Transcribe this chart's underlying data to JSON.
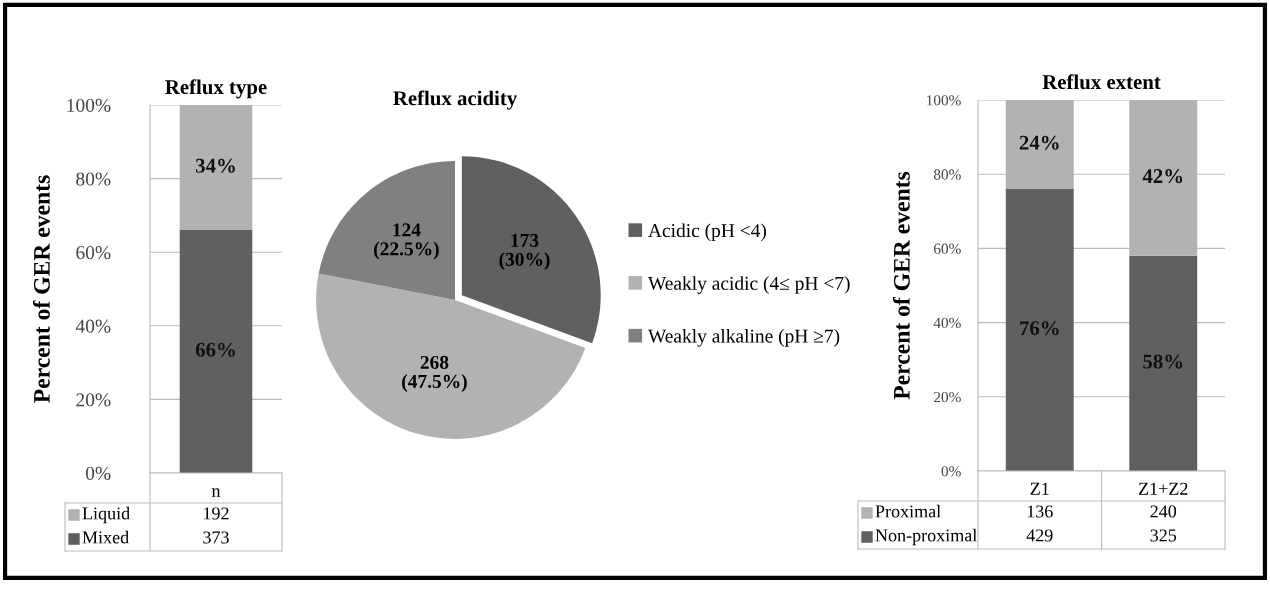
{
  "chart_data": [
    {
      "type": "bar",
      "title": "Reflux type",
      "ylabel": "Percent of GER events",
      "categories": [
        "n"
      ],
      "stacked": true,
      "series": [
        {
          "name": "Mixed",
          "color": "#606060",
          "values": [
            66
          ],
          "value_labels": [
            "66%"
          ]
        },
        {
          "name": "Liquid",
          "color": "#b2b2b2",
          "values": [
            34
          ],
          "value_labels": [
            "34%"
          ]
        }
      ],
      "ylim": [
        0,
        100
      ],
      "yticks": [
        {
          "value": 0,
          "label": "0%"
        },
        {
          "value": 20,
          "label": "20%"
        },
        {
          "value": 40,
          "label": "40%"
        },
        {
          "value": 60,
          "label": "60%"
        },
        {
          "value": 80,
          "label": "80%"
        },
        {
          "value": 100,
          "label": "100%"
        }
      ],
      "grid": "y",
      "legend": "bottom",
      "annotations": [
        "192",
        "373"
      ]
    },
    {
      "type": "pie",
      "title": "Reflux acidity",
      "categories": [
        "Acidic (pH <4)",
        "Weakly acidic (4≤ pH <7)",
        "Weakly alkaline (pH ≥7)"
      ],
      "values": [
        173,
        268,
        124
      ],
      "colors": [
        "#606060",
        "#b2b2b2",
        "#808080"
      ],
      "value_labels": [
        "173\n(30%)",
        "268\n(47.5%)",
        "124\n(22.5%)"
      ],
      "legend": "right"
    },
    {
      "type": "bar",
      "title": "Reflux extent",
      "ylabel": "Percent of GER events",
      "categories": [
        "Z1",
        "Z1+Z2"
      ],
      "stacked": true,
      "series": [
        {
          "name": "Non-proximal",
          "color": "#606060",
          "values": [
            76,
            58
          ],
          "value_labels": [
            "76%",
            "58%"
          ]
        },
        {
          "name": "Proximal",
          "color": "#b2b2b2",
          "values": [
            24,
            42
          ],
          "value_labels": [
            "24%",
            "42%"
          ]
        }
      ],
      "ylim": [
        0,
        100
      ],
      "yticks": [
        {
          "value": 0,
          "label": "0%"
        },
        {
          "value": 20,
          "label": "20%"
        },
        {
          "value": 40,
          "label": "40%"
        },
        {
          "value": 60,
          "label": "60%"
        },
        {
          "value": 80,
          "label": "80%"
        },
        {
          "value": 100,
          "label": "100%"
        }
      ],
      "grid": "y",
      "legend": "bottom",
      "annotations": [
        "136",
        "240",
        "429",
        "325"
      ]
    }
  ]
}
